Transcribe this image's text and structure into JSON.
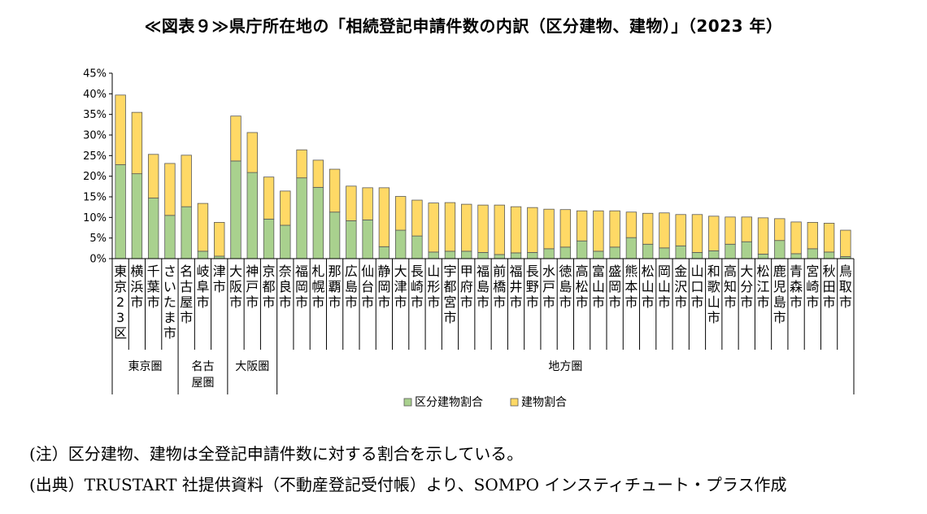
{
  "title": "≪図表９≫県庁所在地の「相続登記申請件数の内訳（区分建物、建物）」（2023 年）",
  "note": "(注）区分建物、建物は全登記申請件数に対する割合を示している。",
  "source": "(出典）TRUSTART 社提供資料（不動産登記受付帳）より、SOMPO インスティチュート・プラス作成",
  "colors": {
    "kubun": "#a9d18e",
    "tatemono": "#ffd966",
    "border": "#595959"
  },
  "chart_data": {
    "type": "bar",
    "stacked": true,
    "categories": [
      "東京23区",
      "横浜市",
      "千葉市",
      "さいたま市",
      "名古屋市",
      "岐阜市",
      "津市",
      "大阪市",
      "神戸市",
      "京都市",
      "奈良市",
      "福岡市",
      "札幌市",
      "那覇市",
      "広島市",
      "仙台市",
      "静岡市",
      "大津市",
      "長崎市",
      "山形市",
      "宇都宮市",
      "甲府市",
      "福島市",
      "前橋市",
      "福井市",
      "長野市",
      "水戸市",
      "徳島市",
      "高松市",
      "富山市",
      "盛岡市",
      "熊本市",
      "松山市",
      "岡山市",
      "金沢市",
      "山口市",
      "和歌山市",
      "高知市",
      "大分市",
      "松江市",
      "鹿児島市",
      "青森市",
      "宮崎市",
      "秋田市",
      "鳥取市"
    ],
    "series": [
      {
        "name": "区分建物割合",
        "color": "#a9d18e",
        "values": [
          22.8,
          20.6,
          14.7,
          10.5,
          12.6,
          1.8,
          0.6,
          23.7,
          20.9,
          9.6,
          8.1,
          19.6,
          17.3,
          11.3,
          9.2,
          9.4,
          2.9,
          6.9,
          5.5,
          1.6,
          1.8,
          1.8,
          1.5,
          1.0,
          1.4,
          1.5,
          2.4,
          2.8,
          4.3,
          1.8,
          2.8,
          5.1,
          3.5,
          2.6,
          3.1,
          1.5,
          1.9,
          3.5,
          4.1,
          1.1,
          4.4,
          1.2,
          2.4,
          1.6,
          0.5
        ]
      },
      {
        "name": "建物割合",
        "color": "#ffd966",
        "values": [
          16.9,
          14.9,
          10.6,
          12.6,
          12.5,
          11.6,
          8.2,
          10.9,
          9.7,
          10.2,
          8.3,
          6.8,
          6.6,
          10.4,
          8.4,
          7.8,
          14.3,
          8.2,
          8.7,
          11.9,
          11.8,
          11.4,
          11.5,
          12.0,
          11.2,
          10.9,
          9.6,
          9.1,
          7.3,
          9.8,
          8.8,
          6.2,
          7.5,
          8.5,
          7.6,
          9.2,
          8.4,
          6.6,
          6.0,
          8.8,
          5.3,
          7.7,
          6.4,
          7.0,
          6.4
        ]
      }
    ],
    "ylim": [
      0,
      45
    ],
    "yticks": [
      "45%",
      "40%",
      "35%",
      "30%",
      "25%",
      "20%",
      "15%",
      "10%",
      "5%",
      "0%"
    ],
    "groups": [
      {
        "label": "東京圏",
        "count": 4
      },
      {
        "label": "名古屋圏",
        "count": 3
      },
      {
        "label": "大阪圏",
        "count": 3
      },
      {
        "label": "地方圏",
        "count": 35
      }
    ],
    "legend_position": "bottom"
  }
}
